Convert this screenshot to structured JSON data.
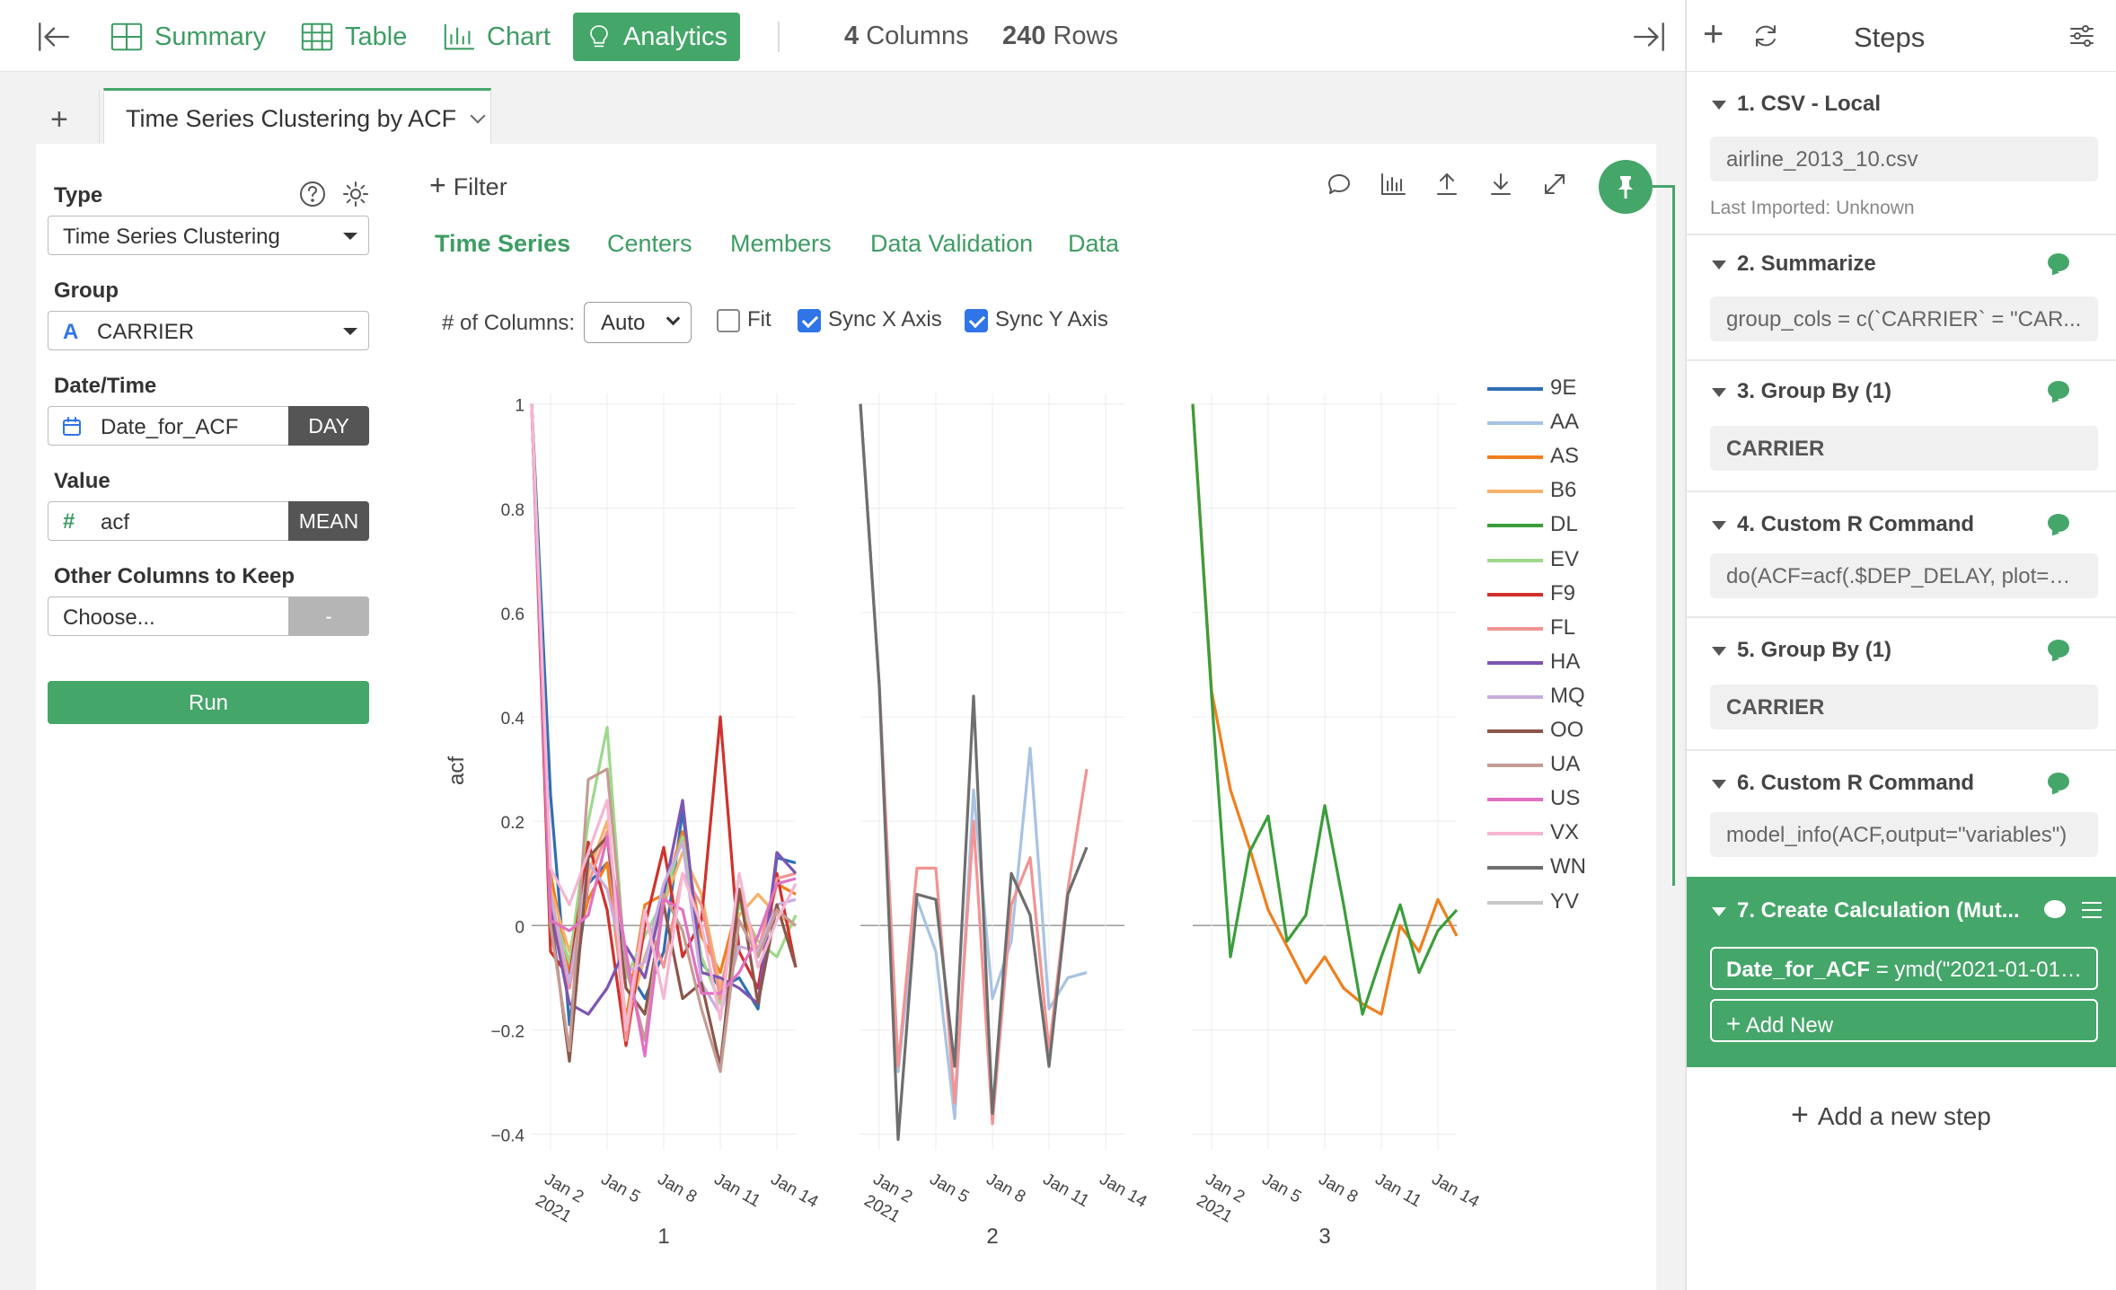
{
  "topbar": {
    "nav": [
      {
        "label": "Summary",
        "icon": "summary-grid-icon"
      },
      {
        "label": "Table",
        "icon": "table-icon"
      },
      {
        "label": "Chart",
        "icon": "chart-icon"
      },
      {
        "label": "Analytics",
        "icon": "lightbulb-icon"
      }
    ],
    "columns_count": "4",
    "columns_label": "Columns",
    "rows_count": "240",
    "rows_label": "Rows"
  },
  "tabs": {
    "active_label": "Time Series Clustering by ACF"
  },
  "left": {
    "type_label": "Type",
    "type_value": "Time Series Clustering",
    "group_label": "Group",
    "group_value": "CARRIER",
    "group_type_glyph": "A",
    "datetime_label": "Date/Time",
    "datetime_value": "Date_for_ACF",
    "datetime_unit": "DAY",
    "value_label": "Value",
    "value_value": "acf",
    "value_type_glyph": "#",
    "value_agg": "MEAN",
    "other_label": "Other Columns to Keep",
    "other_placeholder": "Choose...",
    "other_agg": "-",
    "run_label": "Run"
  },
  "main": {
    "filter_label": "Filter",
    "subtabs": [
      "Time Series",
      "Centers",
      "Members",
      "Data Validation",
      "Data"
    ],
    "columns_option_label": "# of Columns:",
    "columns_option_value": "Auto",
    "fit_label": "Fit",
    "sync_x_label": "Sync X Axis",
    "sync_y_label": "Sync Y Axis",
    "fit_checked": false,
    "sync_x_checked": true,
    "sync_y_checked": true
  },
  "right": {
    "title": "Steps",
    "steps": [
      {
        "title": "1. CSV - Local",
        "content": "airline_2013_10.csv",
        "note": "Last Imported: Unknown"
      },
      {
        "title": "2. Summarize",
        "content": "group_cols = c(`CARRIER` = \"CAR..."
      },
      {
        "title": "3. Group By (1)",
        "content": "CARRIER"
      },
      {
        "title": "4. Custom R Command",
        "content": "do(ACF=acf(.$DEP_DELAY, plot=FA..."
      },
      {
        "title": "5. Group By (1)",
        "content": "CARRIER"
      },
      {
        "title": "6. Custom R Command",
        "content": "model_info(ACF,output=\"variables\")"
      },
      {
        "title": "7. Create Calculation (Mut...",
        "content_bold": "Date_for_ACF",
        "content": " = ymd(\"2021-01-01\"...",
        "add_label": "Add New"
      }
    ],
    "add_step_label": "Add a new step"
  },
  "chart_data": {
    "type": "line",
    "ylabel": "acf",
    "ylim": [
      -0.43,
      1.02
    ],
    "yticks": [
      "1",
      "0.8",
      "0.6",
      "0.4",
      "0.2",
      "0",
      "−0.2",
      "−0.4"
    ],
    "ytick_values": [
      1,
      0.8,
      0.6,
      0.4,
      0.2,
      0,
      -0.2,
      -0.4
    ],
    "x": [
      "2021-01-01",
      "2021-01-02",
      "2021-01-03",
      "2021-01-04",
      "2021-01-05",
      "2021-01-06",
      "2021-01-07",
      "2021-01-08",
      "2021-01-09",
      "2021-01-10",
      "2021-01-11",
      "2021-01-12",
      "2021-01-13",
      "2021-01-14",
      "2021-01-15"
    ],
    "xticks": [
      {
        "label": "Jan 2",
        "sub": "2021",
        "x": "2021-01-02"
      },
      {
        "label": "Jan 5",
        "x": "2021-01-05"
      },
      {
        "label": "Jan 8",
        "x": "2021-01-08"
      },
      {
        "label": "Jan 11",
        "x": "2021-01-11"
      },
      {
        "label": "Jan 14",
        "x": "2021-01-14"
      }
    ],
    "panels": [
      {
        "label": "1",
        "series": [
          {
            "name": "9E",
            "color": "#2f6fb3",
            "values": [
              1,
              0.25,
              -0.19,
              0.08,
              0.12,
              -0.08,
              -0.14,
              -0.05,
              0.22,
              -0.07,
              -0.12,
              -0.1,
              -0.16,
              0.13,
              0.12
            ]
          },
          {
            "name": "AS",
            "color": "#f07f1e",
            "values": [
              1,
              0.1,
              -0.09,
              0.05,
              0.12,
              -0.18,
              0.04,
              0.06,
              0.18,
              -0.02,
              -0.09,
              0.05,
              -0.06,
              0.08,
              0.06
            ]
          },
          {
            "name": "B6",
            "color": "#f5b26b",
            "values": [
              1,
              0.07,
              -0.05,
              0.1,
              0.2,
              -0.19,
              -0.06,
              0.04,
              0.14,
              0.06,
              -0.12,
              0.02,
              0.06,
              0.02,
              0.0
            ]
          },
          {
            "name": "EV",
            "color": "#9ed98a",
            "values": [
              1,
              0.04,
              -0.07,
              0.2,
              0.38,
              -0.1,
              -0.02,
              0.05,
              0.17,
              -0.06,
              -0.15,
              0.04,
              -0.03,
              -0.06,
              0.02
            ]
          },
          {
            "name": "F9",
            "color": "#d0312c",
            "values": [
              1,
              -0.05,
              -0.1,
              0.16,
              0.03,
              -0.23,
              0.0,
              0.15,
              -0.06,
              0.01,
              0.4,
              -0.05,
              -0.12,
              0.1,
              -0.08
            ]
          },
          {
            "name": "FL",
            "color": "#f49393",
            "values": [
              1,
              0.04,
              -0.12,
              0.08,
              0.18,
              -0.22,
              0.02,
              -0.08,
              0.1,
              0.04,
              -0.14,
              0.07,
              -0.05,
              0.09,
              0.1
            ]
          },
          {
            "name": "HA",
            "color": "#7d55b3",
            "values": [
              1,
              0.03,
              -0.15,
              -0.17,
              -0.12,
              -0.04,
              -0.1,
              0.06,
              0.24,
              -0.09,
              -0.1,
              -0.12,
              -0.15,
              0.14,
              0.1
            ]
          },
          {
            "name": "MQ",
            "color": "#c7aedc",
            "values": [
              1,
              0.06,
              -0.11,
              0.12,
              0.07,
              -0.09,
              -0.07,
              0.08,
              0.16,
              -0.11,
              -0.17,
              -0.04,
              -0.05,
              0.04,
              0.05
            ]
          },
          {
            "name": "OO",
            "color": "#8c564b",
            "values": [
              1,
              0.02,
              -0.26,
              0.13,
              0.17,
              -0.12,
              -0.17,
              0.04,
              -0.14,
              -0.11,
              -0.27,
              0.07,
              -0.15,
              0.04,
              -0.08
            ]
          },
          {
            "name": "UA",
            "color": "#c49c94",
            "values": [
              1,
              0.0,
              -0.24,
              0.28,
              0.3,
              -0.08,
              -0.22,
              0.06,
              -0.01,
              -0.16,
              -0.28,
              0.01,
              -0.06,
              0.03,
              0.0
            ]
          },
          {
            "name": "US",
            "color": "#e371c2",
            "values": [
              1,
              0.01,
              -0.01,
              0.02,
              0.17,
              -0.05,
              -0.25,
              0.05,
              0.03,
              -0.13,
              -0.13,
              -0.09,
              -0.02,
              0.08,
              0.09
            ]
          },
          {
            "name": "VX",
            "color": "#f6b6d2",
            "values": [
              1,
              0.11,
              0.04,
              0.14,
              0.24,
              -0.2,
              0.03,
              -0.14,
              0.1,
              0.0,
              -0.18,
              0.1,
              -0.08,
              0.01,
              0.08
            ]
          }
        ]
      },
      {
        "label": "2",
        "series": [
          {
            "name": "AA",
            "color": "#a8c3e3",
            "values": [
              1,
              0.46,
              -0.28,
              0.05,
              -0.05,
              -0.37,
              0.26,
              -0.14,
              -0.03,
              0.34,
              -0.16,
              -0.1,
              -0.09
            ]
          },
          {
            "name": "FL",
            "color": "#f49393",
            "values": [
              1,
              0.46,
              -0.27,
              0.11,
              0.11,
              -0.34,
              0.2,
              -0.38,
              0.04,
              0.13,
              -0.24,
              0.07,
              0.3
            ]
          },
          {
            "name": "WN",
            "color": "#6e6e6e",
            "values": [
              1,
              0.46,
              -0.41,
              0.06,
              0.05,
              -0.27,
              0.44,
              -0.36,
              0.1,
              0.02,
              -0.27,
              0.06,
              0.15
            ]
          }
        ]
      },
      {
        "label": "3",
        "series": [
          {
            "name": "AS",
            "color": "#f07f1e",
            "values": [
              1,
              0.45,
              0.26,
              0.15,
              0.03,
              -0.04,
              -0.11,
              -0.06,
              -0.12,
              -0.15,
              -0.17,
              0.0,
              -0.05,
              0.05,
              -0.02
            ]
          },
          {
            "name": "DL",
            "color": "#3a9e3a",
            "values": [
              1,
              0.44,
              -0.06,
              0.14,
              0.21,
              -0.03,
              0.02,
              0.23,
              0.04,
              -0.17,
              -0.06,
              0.04,
              -0.09,
              -0.01,
              0.03
            ]
          }
        ]
      }
    ],
    "legend": {
      "position": "right",
      "entries": [
        {
          "name": "9E",
          "color": "#2f6fb3"
        },
        {
          "name": "AA",
          "color": "#a8c3e3"
        },
        {
          "name": "AS",
          "color": "#f07f1e"
        },
        {
          "name": "B6",
          "color": "#f5b26b"
        },
        {
          "name": "DL",
          "color": "#3a9e3a"
        },
        {
          "name": "EV",
          "color": "#9ed98a"
        },
        {
          "name": "F9",
          "color": "#d0312c"
        },
        {
          "name": "FL",
          "color": "#f49393"
        },
        {
          "name": "HA",
          "color": "#7d55b3"
        },
        {
          "name": "MQ",
          "color": "#c7aedc"
        },
        {
          "name": "OO",
          "color": "#8c564b"
        },
        {
          "name": "UA",
          "color": "#c49c94"
        },
        {
          "name": "US",
          "color": "#e371c2"
        },
        {
          "name": "VX",
          "color": "#f6b6d2"
        },
        {
          "name": "WN",
          "color": "#6e6e6e"
        },
        {
          "name": "YV",
          "color": "#c8c8c8"
        }
      ]
    }
  }
}
